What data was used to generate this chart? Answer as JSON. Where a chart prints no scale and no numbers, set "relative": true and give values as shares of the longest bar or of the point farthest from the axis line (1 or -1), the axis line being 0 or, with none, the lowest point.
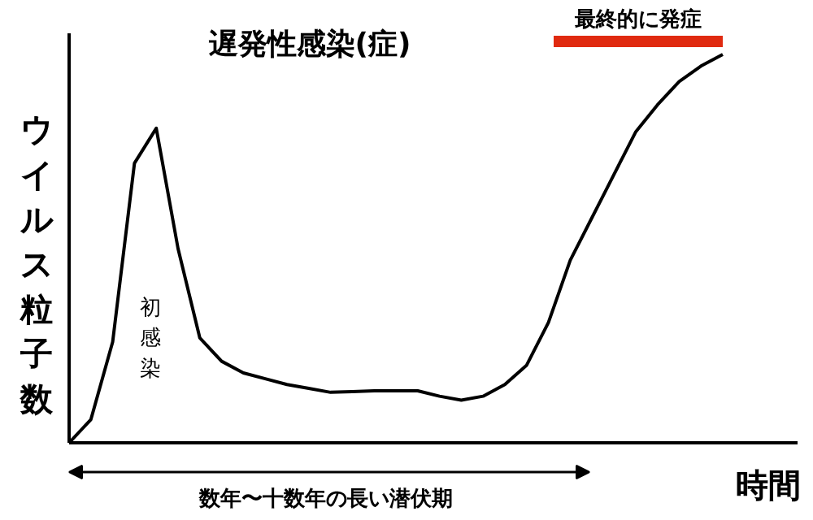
{
  "chart_data": {
    "type": "line",
    "title": "遅発性感染(症)",
    "xlabel": "時間",
    "ylabel": "ウイルス粒子数",
    "relative": true,
    "color": "#000000",
    "categories": [
      null,
      null,
      null,
      null,
      null,
      null,
      null,
      null,
      null,
      null,
      null,
      null,
      null,
      null,
      null,
      null,
      null,
      null,
      null,
      null,
      null,
      null,
      null,
      null,
      null,
      null,
      null,
      null,
      null,
      null,
      null
    ],
    "values": [
      0,
      0.06,
      0.26,
      0.72,
      0.81,
      0.5,
      0.27,
      0.21,
      0.18,
      0.165,
      0.15,
      0.14,
      0.13,
      0.132,
      0.134,
      0.134,
      0.134,
      0.12,
      0.11,
      0.12,
      0.15,
      0.2,
      0.31,
      0.47,
      0.58,
      0.69,
      0.8,
      0.87,
      0.93,
      0.97,
      1.0
    ],
    "annotations": [
      "初感染",
      "最終的に発症",
      "数年〜十数年の長い潜伏期"
    ],
    "grid": false,
    "marker": "none",
    "line_style": "solid"
  }
}
